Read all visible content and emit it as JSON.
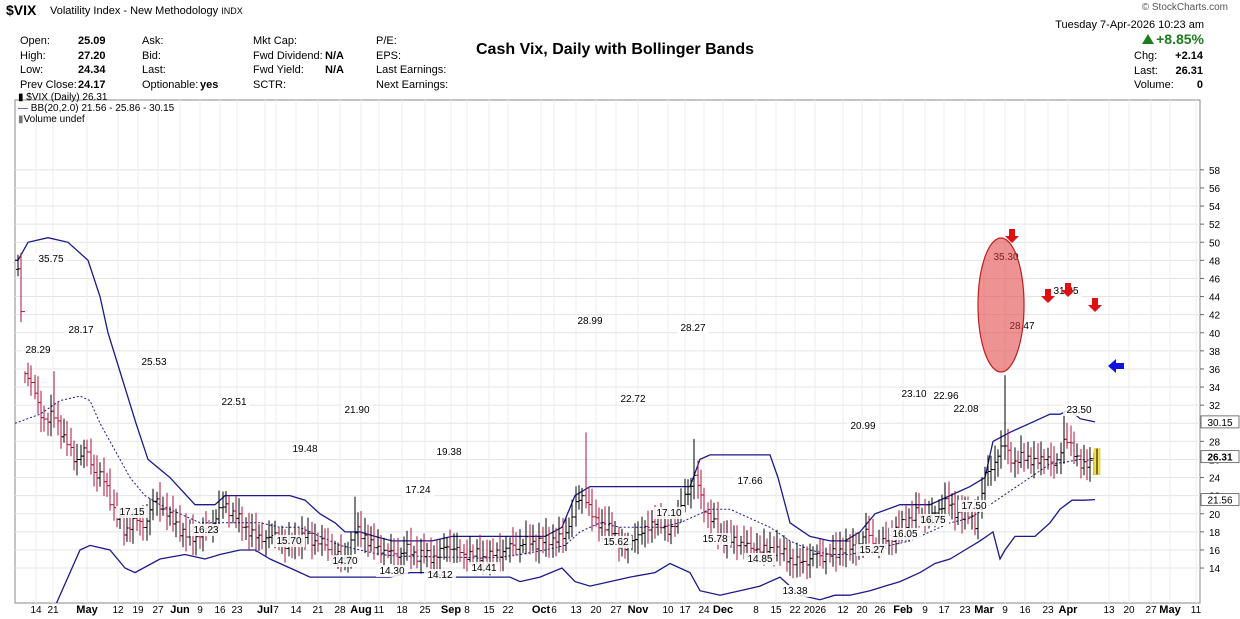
{
  "header": {
    "symbol": "$VIX",
    "name": "Volatility Index - New Methodology",
    "exchange": "INDX",
    "watermark": "© StockCharts.com",
    "date": "Tuesday  7-Apr-2026  10:23 am",
    "change_pct": "+8.85%",
    "col1": [
      {
        "label": "Open:",
        "value": "25.09"
      },
      {
        "label": "High:",
        "value": "27.20"
      },
      {
        "label": "Low:",
        "value": "24.34"
      },
      {
        "label": "Prev Close:",
        "value": "24.17"
      }
    ],
    "col2": [
      {
        "label": "Ask:",
        "value": ""
      },
      {
        "label": "Bid:",
        "value": ""
      },
      {
        "label": "Last:",
        "value": ""
      },
      {
        "label": "Optionable:",
        "value": "yes"
      }
    ],
    "col3": [
      {
        "label": "Mkt Cap:",
        "value": ""
      },
      {
        "label": "Fwd Dividend:",
        "value": "N/A"
      },
      {
        "label": "Fwd Yield:",
        "value": "N/A"
      },
      {
        "label": "SCTR:",
        "value": ""
      }
    ],
    "col4": [
      {
        "label": "P/E:",
        "value": ""
      },
      {
        "label": "EPS:",
        "value": ""
      },
      {
        "label": "Last Earnings:",
        "value": ""
      },
      {
        "label": "Next Earnings:",
        "value": ""
      }
    ],
    "col5": [
      {
        "label": "Chg:",
        "value": "+2.14"
      },
      {
        "label": "Last:",
        "value": "26.31"
      },
      {
        "label": "Volume:",
        "value": "0"
      }
    ]
  },
  "legend": {
    "line1": "$VIX (Daily) 26.31",
    "line2": "BB(20,2.0) 21.56 - 25.86 - 30.15",
    "line3": "Volume undef"
  },
  "chart_data": {
    "type": "ohlc",
    "title": "Cash Vix, Daily with Bollinger Bands",
    "ylim": [
      12,
      59
    ],
    "y_ticks": [
      14,
      16,
      18,
      20,
      22,
      24,
      26,
      28,
      30,
      32,
      34,
      36,
      38,
      40,
      42,
      44,
      46,
      48,
      50,
      52,
      54,
      56,
      58
    ],
    "x_tick_labels": [
      "14",
      "21",
      "May",
      "12",
      "19",
      "27",
      "Jun",
      "9",
      "16",
      "23",
      "Jul",
      "7",
      "14",
      "21",
      "28",
      "Aug",
      "11",
      "18",
      "25",
      "Sep",
      "8",
      "15",
      "22",
      "Oct",
      "6",
      "13",
      "20",
      "27",
      "Nov",
      "10",
      "17",
      "24",
      "Dec",
      "8",
      "15",
      "22",
      "2026",
      "12",
      "20",
      "26",
      "Feb",
      "9",
      "17",
      "23",
      "Mar",
      "9",
      "16",
      "23",
      "Apr",
      "13",
      "20",
      "27",
      "May",
      "11"
    ],
    "x_tick_positions": [
      36,
      53,
      87,
      118,
      138,
      158,
      180,
      200,
      220,
      237,
      265,
      276,
      296,
      318,
      340,
      361,
      379,
      402,
      425,
      451,
      467,
      489,
      508,
      541,
      554,
      576,
      596,
      616,
      638,
      668,
      685,
      704,
      723,
      756,
      776,
      795,
      815,
      843,
      862,
      880,
      903,
      925,
      944,
      965,
      984,
      1005,
      1025,
      1048,
      1068,
      1109,
      1129,
      1151,
      1170,
      1196
    ],
    "price_labels": [
      {
        "date": "Apr-2025",
        "value": "35.75"
      },
      {
        "date": "Apr-2025",
        "value": "28.29"
      },
      {
        "date": "Apr-2025",
        "value": "28.17"
      },
      {
        "date": "May-2025",
        "value": "25.53"
      },
      {
        "date": "May-2025",
        "value": "17.15"
      },
      {
        "date": "Jun-2025",
        "value": "16.23"
      },
      {
        "date": "Jun-2025",
        "value": "22.51"
      },
      {
        "date": "Jul-2025",
        "value": "15.70"
      },
      {
        "date": "Jul-2025",
        "value": "19.48"
      },
      {
        "date": "Jul-2025",
        "value": "14.70"
      },
      {
        "date": "Aug-2025",
        "value": "21.90"
      },
      {
        "date": "Aug-2025",
        "value": "14.30"
      },
      {
        "date": "Aug-2025",
        "value": "17.24"
      },
      {
        "date": "Aug-2025",
        "value": "14.12"
      },
      {
        "date": "Sep-2025",
        "value": "19.38"
      },
      {
        "date": "Sep-2025",
        "value": "14.41"
      },
      {
        "date": "Oct-2025",
        "value": "28.99"
      },
      {
        "date": "Oct-2025",
        "value": "15.62"
      },
      {
        "date": "Oct-2025",
        "value": "22.72"
      },
      {
        "date": "Nov-2025",
        "value": "17.10"
      },
      {
        "date": "Nov-2025",
        "value": "28.27"
      },
      {
        "date": "Nov-2025",
        "value": "15.78"
      },
      {
        "date": "Dec-2025",
        "value": "17.66"
      },
      {
        "date": "Dec-2025",
        "value": "14.85"
      },
      {
        "date": "Dec-2025",
        "value": "13.38"
      },
      {
        "date": "Jan-2026",
        "value": "20.99"
      },
      {
        "date": "Jan-2026",
        "value": "15.27"
      },
      {
        "date": "Jan-2026",
        "value": "16.05"
      },
      {
        "date": "Feb-2026",
        "value": "23.10"
      },
      {
        "date": "Feb-2026",
        "value": "16.75"
      },
      {
        "date": "Feb-2026",
        "value": "22.96"
      },
      {
        "date": "Feb-2026",
        "value": "22.08"
      },
      {
        "date": "Feb-2026",
        "value": "17.50"
      },
      {
        "date": "Mar-2026",
        "value": "35.30"
      },
      {
        "date": "Mar-2026",
        "value": "28.47"
      },
      {
        "date": "Mar-2026",
        "value": "31.35"
      },
      {
        "date": "Mar-2026",
        "value": "23.50"
      }
    ],
    "right_axis_labels": [
      {
        "value": 30.15,
        "text": "30.15"
      },
      {
        "value": 26.31,
        "text": "26.31"
      },
      {
        "value": 21.56,
        "text": "21.56"
      }
    ],
    "last_value": 26.31,
    "colors": {
      "up": "#000000",
      "down": "#b0103a",
      "band": "#1a1a8c",
      "highlight": "#e03a3a",
      "arrow_red": "#e01010",
      "arrow_blue": "#1010e0"
    }
  }
}
